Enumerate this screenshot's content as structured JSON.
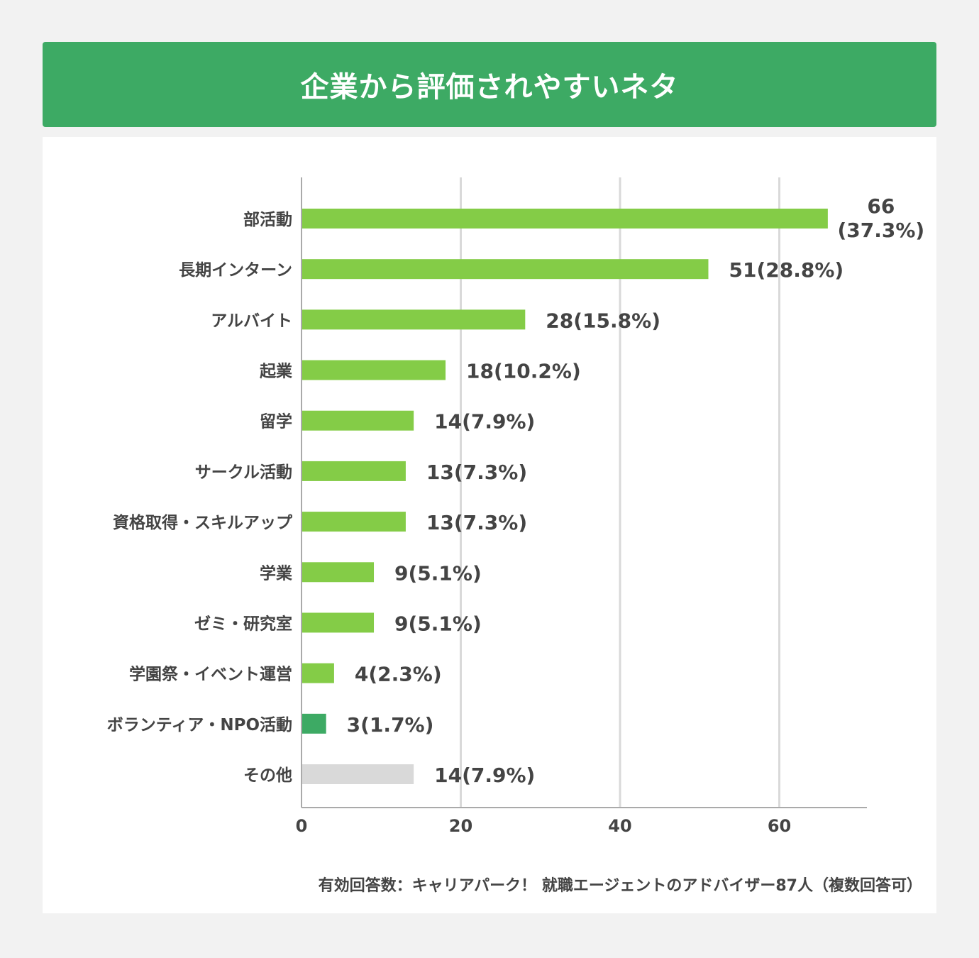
{
  "header": {
    "title": "企業から評価されやすいネタ"
  },
  "chart_data": {
    "type": "bar",
    "orientation": "horizontal",
    "title": "企業から評価されやすいネタ",
    "categories": [
      "部活動",
      "長期インターン",
      "アルバイト",
      "起業",
      "留学",
      "サークル活動",
      "資格取得・スキルアップ",
      "学業",
      "ゼミ・研究室",
      "学園祭・イベント運営",
      "ボランティア・NPO活動",
      "その他"
    ],
    "values": [
      66,
      51,
      28,
      18,
      14,
      13,
      13,
      9,
      9,
      4,
      3,
      14
    ],
    "percents": [
      "37.3%",
      "28.8%",
      "15.8%",
      "10.2%",
      "7.9%",
      "7.3%",
      "7.3%",
      "5.1%",
      "5.1%",
      "2.3%",
      "1.7%",
      "7.9%"
    ],
    "bar_colors": [
      "#84cc47",
      "#84cc47",
      "#84cc47",
      "#84cc47",
      "#84cc47",
      "#84cc47",
      "#84cc47",
      "#84cc47",
      "#84cc47",
      "#84cc47",
      "#3daa64",
      "#d9d9d9"
    ],
    "xlim": [
      0,
      71
    ],
    "xticks": [
      "0",
      "20",
      "40",
      "60"
    ],
    "grid": true,
    "xlabel": "",
    "ylabel": ""
  },
  "footnote": "有効回答数：キャリアパーク！ 就職エージェントのアドバイザー87人（複数回答可）"
}
